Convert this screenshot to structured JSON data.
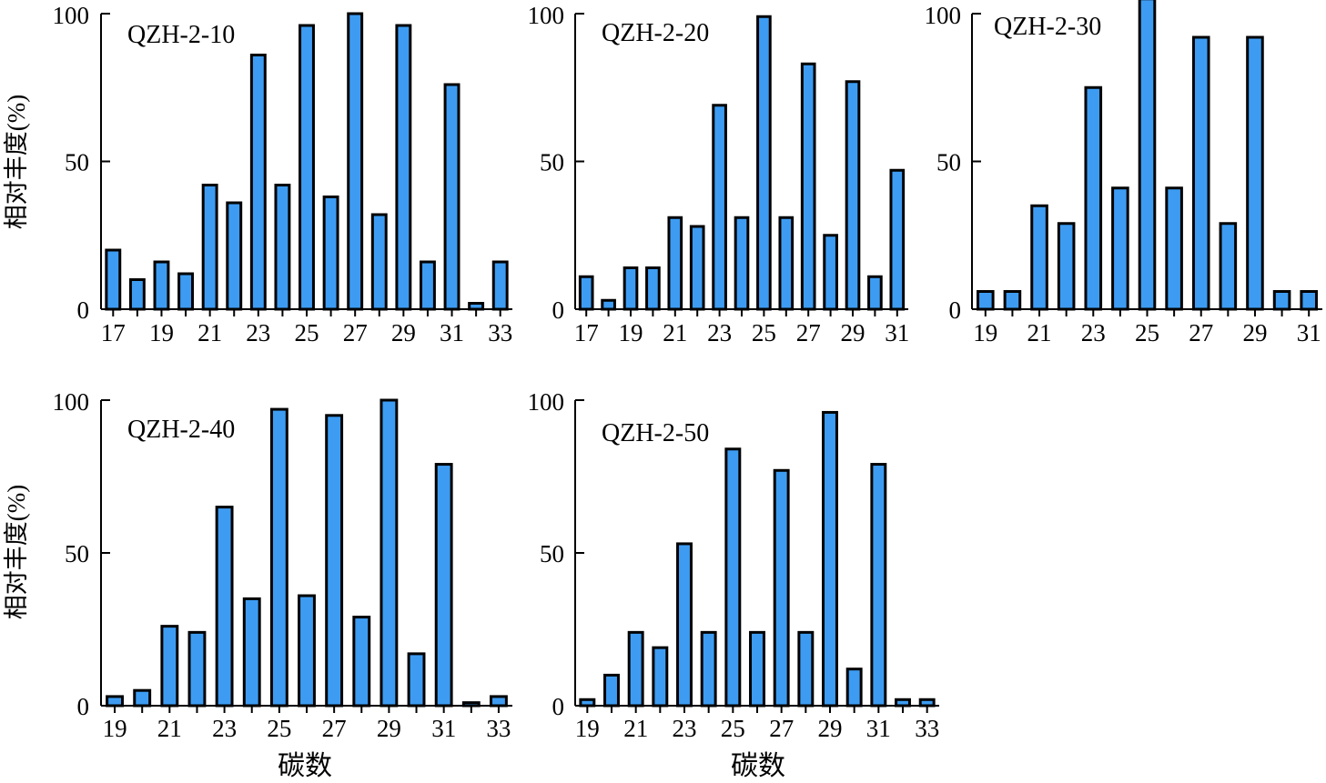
{
  "y_axis_label": "相对丰度(%)",
  "x_axis_label": "碳数",
  "colors": {
    "bar_fill": "#3d9cf2",
    "bar_stroke": "#000000"
  },
  "chart_data": [
    {
      "type": "bar",
      "title": "QZH-2-10",
      "x": [
        17,
        18,
        19,
        20,
        21,
        22,
        23,
        24,
        25,
        26,
        27,
        28,
        29,
        30,
        31,
        32,
        33
      ],
      "values": [
        20,
        10,
        16,
        12,
        42,
        36,
        86,
        42,
        96,
        38,
        100,
        32,
        96,
        16,
        76,
        2,
        16
      ],
      "xticks": [
        17,
        19,
        21,
        23,
        25,
        27,
        29,
        31,
        33
      ],
      "yticks": [
        0,
        50,
        100
      ],
      "ylim": [
        0,
        100
      ],
      "ylabel": "相对丰度(%)",
      "xlabel": ""
    },
    {
      "type": "bar",
      "title": "QZH-2-20",
      "x": [
        17,
        18,
        19,
        20,
        21,
        22,
        23,
        24,
        25,
        26,
        27,
        28,
        29,
        30,
        31
      ],
      "values": [
        11,
        3,
        14,
        14,
        31,
        28,
        69,
        31,
        99,
        31,
        83,
        25,
        77,
        11,
        47
      ],
      "xticks": [
        17,
        19,
        21,
        23,
        25,
        27,
        29,
        31
      ],
      "yticks": [
        0,
        50,
        100
      ],
      "ylim": [
        0,
        100
      ],
      "ylabel": "",
      "xlabel": ""
    },
    {
      "type": "bar",
      "title": "QZH-2-30",
      "x": [
        19,
        20,
        21,
        22,
        23,
        24,
        25,
        26,
        27,
        28,
        29,
        30,
        31
      ],
      "values": [
        6,
        6,
        35,
        29,
        75,
        41,
        105,
        41,
        92,
        29,
        92,
        6,
        6
      ],
      "xticks": [
        19,
        21,
        23,
        25,
        27,
        29,
        31
      ],
      "yticks": [
        0,
        50,
        100
      ],
      "ylim": [
        0,
        100
      ],
      "ylabel": "",
      "xlabel": ""
    },
    {
      "type": "bar",
      "title": "QZH-2-40",
      "x": [
        19,
        20,
        21,
        22,
        23,
        24,
        25,
        26,
        27,
        28,
        29,
        30,
        31,
        32,
        33
      ],
      "values": [
        3,
        5,
        26,
        24,
        65,
        35,
        97,
        36,
        95,
        29,
        100,
        17,
        79,
        1,
        3
      ],
      "xticks": [
        19,
        21,
        23,
        25,
        27,
        29,
        31,
        33
      ],
      "yticks": [
        0,
        50,
        100
      ],
      "ylim": [
        0,
        100
      ],
      "ylabel": "相对丰度(%)",
      "xlabel": "碳数"
    },
    {
      "type": "bar",
      "title": "QZH-2-50",
      "x": [
        19,
        20,
        21,
        22,
        23,
        24,
        25,
        26,
        27,
        28,
        29,
        30,
        31,
        32,
        33
      ],
      "values": [
        2,
        10,
        24,
        19,
        53,
        24,
        84,
        24,
        77,
        24,
        96,
        12,
        79,
        2,
        2
      ],
      "xticks": [
        19,
        21,
        23,
        25,
        27,
        29,
        31,
        33
      ],
      "yticks": [
        0,
        50,
        100
      ],
      "ylim": [
        0,
        100
      ],
      "ylabel": "",
      "xlabel": "碳数"
    }
  ]
}
